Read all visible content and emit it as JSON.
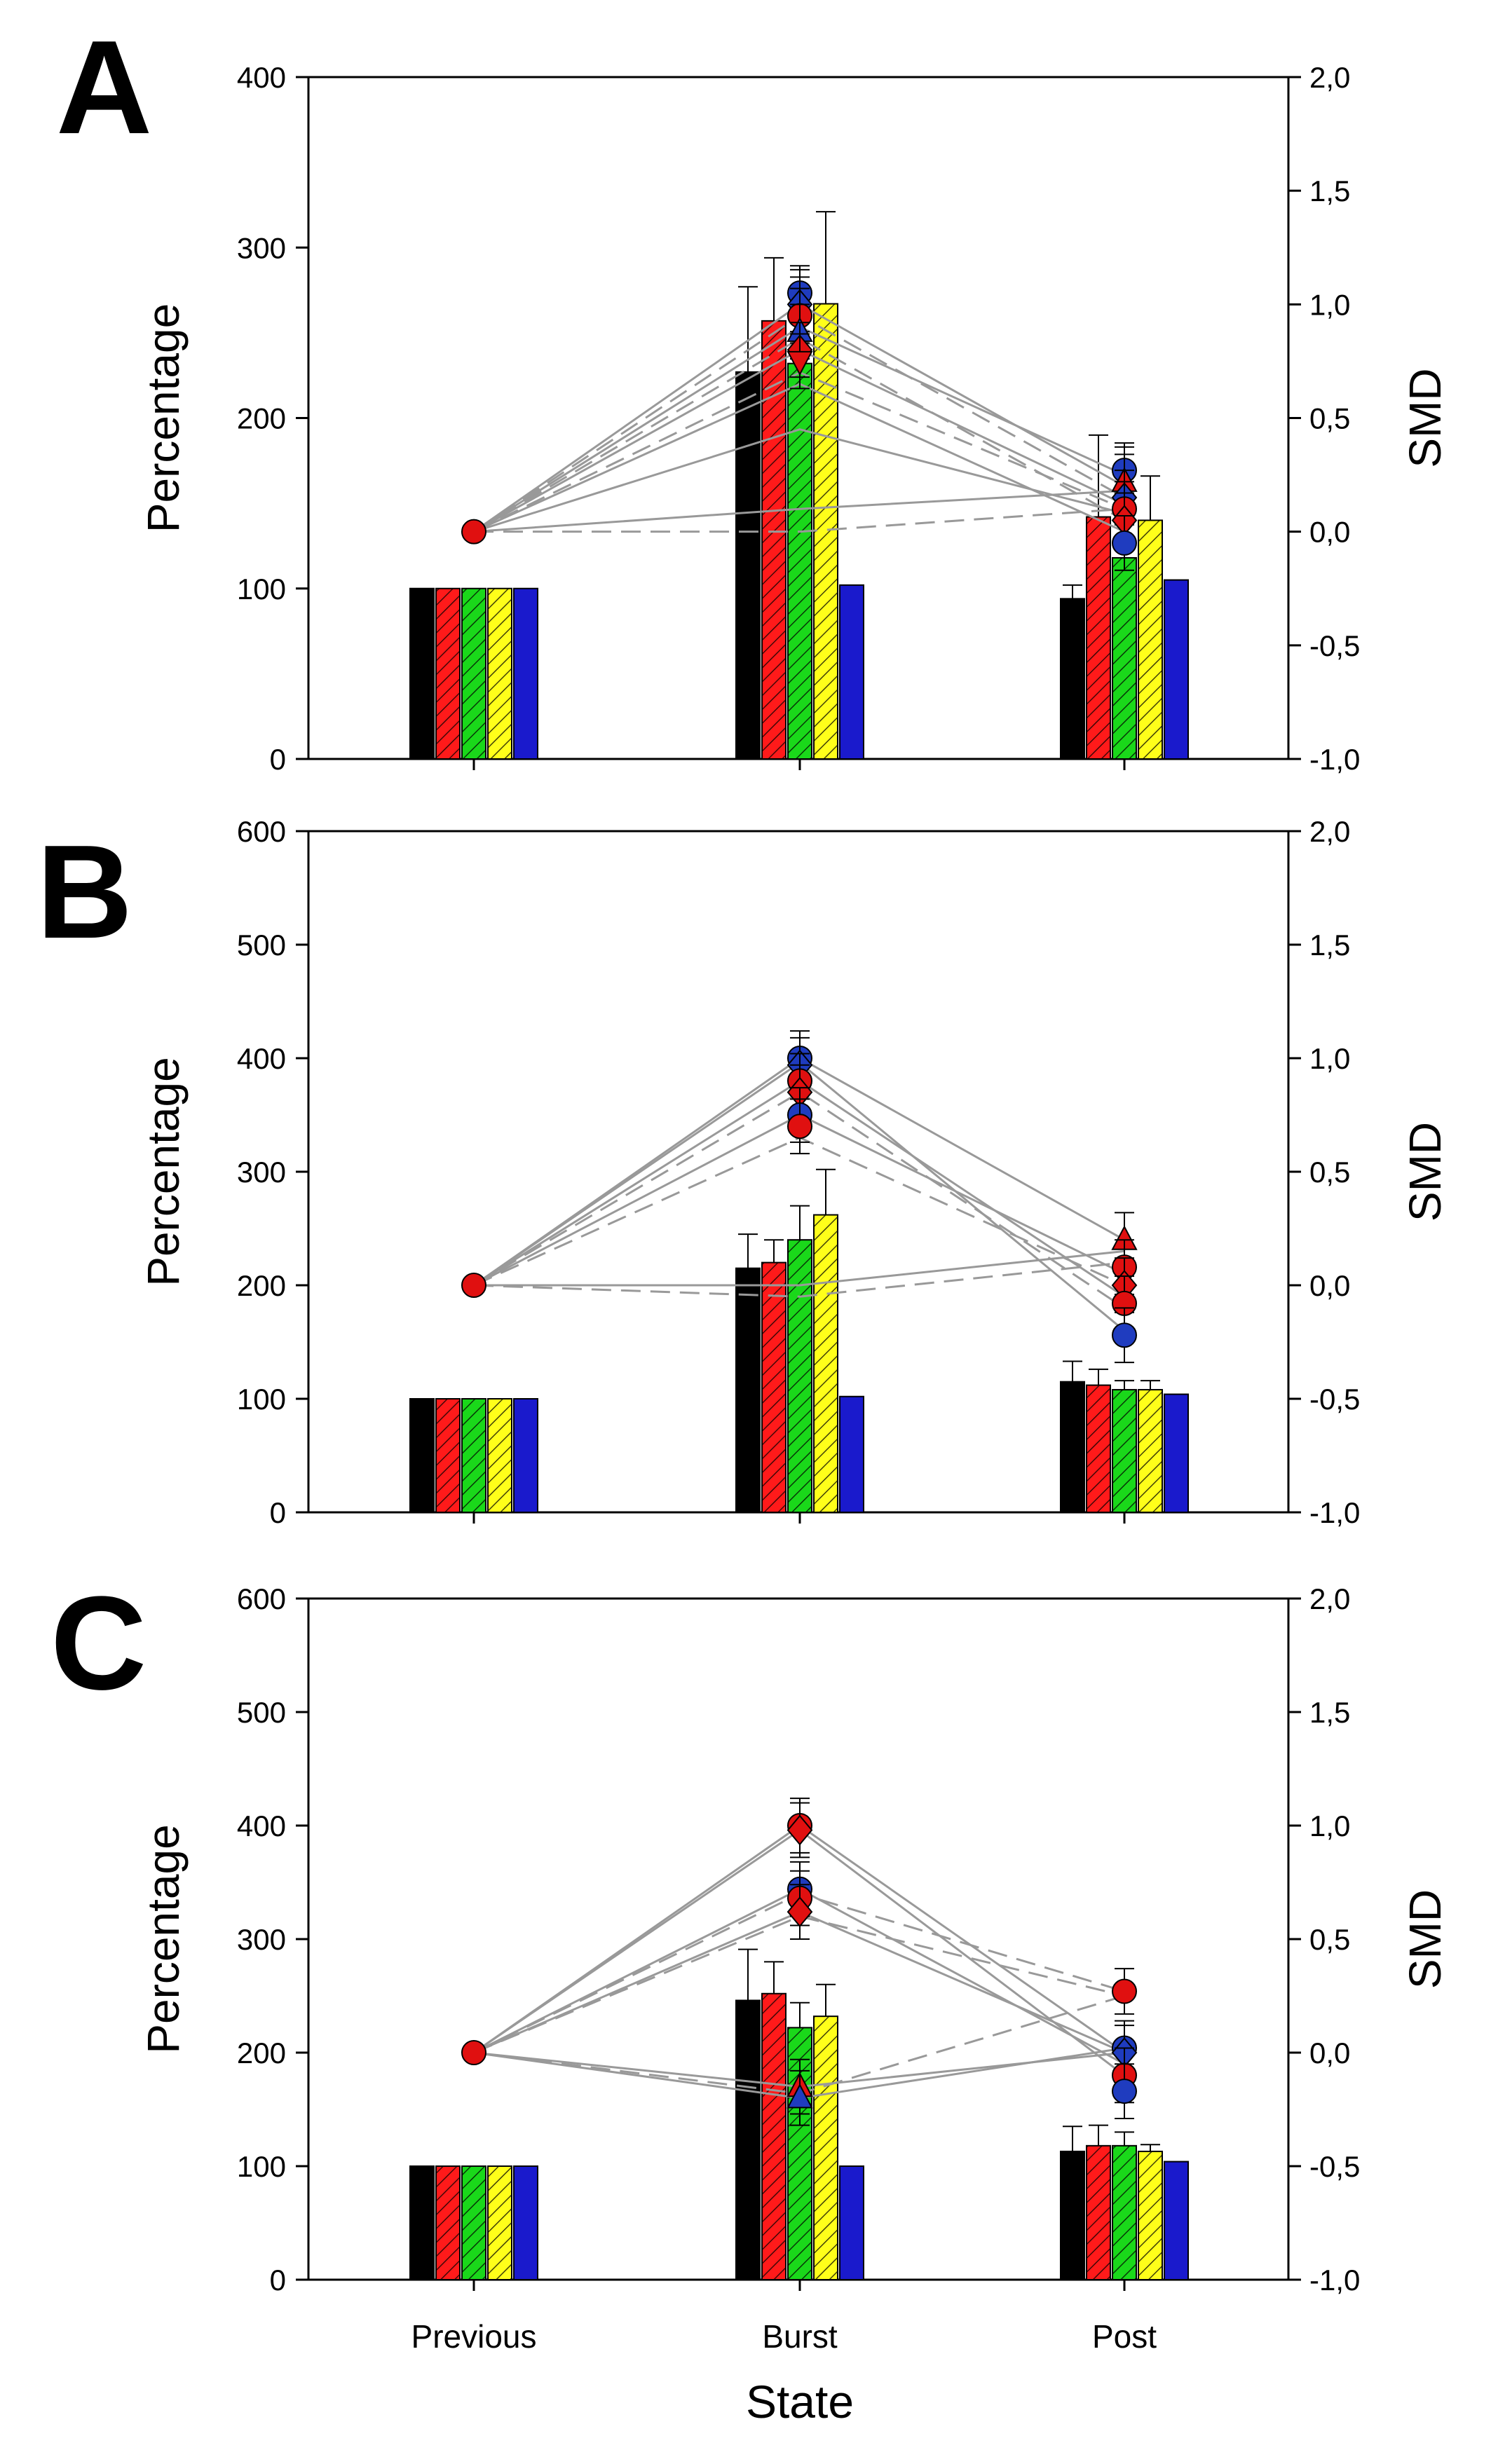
{
  "figure": {
    "xlabel": "State",
    "categories": [
      "Previous",
      "Burst",
      "Post"
    ]
  },
  "colors": {
    "black": "#000000",
    "red": "#ff1a1a",
    "green": "#1ad81a",
    "yellow": "#ffff1a",
    "blue": "#1a1acc",
    "line": "#999999",
    "marker_red": "#e01010",
    "marker_blue": "#1f3cbf"
  },
  "chart_data": [
    {
      "type": "bar",
      "panel": "A",
      "ylabel": "Percentage",
      "y2label": "SMD",
      "ylim": [
        0,
        400
      ],
      "yticks": [
        "0",
        "100",
        "200",
        "300",
        "400"
      ],
      "y2lim": [
        -1.0,
        2.0
      ],
      "y2ticks": [
        "-1,0",
        "-0,5",
        "0,0",
        "0,5",
        "1,0",
        "1,5",
        "2,0"
      ],
      "categories": [
        "Previous",
        "Burst",
        "Post"
      ],
      "series": [
        {
          "color": "black",
          "hatch": false,
          "values": [
            100,
            227,
            94
          ],
          "errors": [
            0,
            50,
            8
          ]
        },
        {
          "color": "red",
          "hatch": true,
          "values": [
            100,
            257,
            142
          ],
          "errors": [
            0,
            37,
            48
          ]
        },
        {
          "color": "green",
          "hatch": true,
          "values": [
            100,
            232,
            118
          ],
          "errors": [
            0,
            55,
            65
          ]
        },
        {
          "color": "yellow",
          "hatch": true,
          "values": [
            100,
            267,
            140
          ],
          "errors": [
            0,
            54,
            26
          ]
        },
        {
          "color": "blue",
          "hatch": false,
          "values": [
            100,
            102,
            105
          ],
          "errors": [
            0,
            0,
            0
          ]
        }
      ],
      "smd_lines": [
        {
          "style": "solid",
          "values": [
            0.0,
            1.0,
            0.2
          ]
        },
        {
          "style": "solid",
          "values": [
            0.0,
            0.9,
            0.25
          ]
        },
        {
          "style": "solid",
          "values": [
            0.0,
            0.8,
            0.12
          ]
        },
        {
          "style": "solid",
          "values": [
            0.0,
            0.65,
            0.0
          ]
        },
        {
          "style": "solid",
          "values": [
            0.0,
            0.45,
            0.08
          ]
        },
        {
          "style": "solid",
          "values": [
            0.0,
            0.1,
            0.18
          ]
        },
        {
          "style": "dashed",
          "values": [
            0.0,
            0.95,
            0.15
          ]
        },
        {
          "style": "dashed",
          "values": [
            0.0,
            0.85,
            0.05
          ]
        },
        {
          "style": "dashed",
          "values": [
            0.0,
            0.7,
            0.1
          ]
        },
        {
          "style": "dashed",
          "values": [
            0.0,
            0.0,
            0.1
          ]
        }
      ],
      "smd_markers": [
        {
          "cat": 0,
          "value": 0.0,
          "color": "red",
          "shape": "circle",
          "err": 0
        },
        {
          "cat": 1,
          "value": 1.05,
          "color": "blue",
          "shape": "circle",
          "err": 0.12
        },
        {
          "cat": 1,
          "value": 1.0,
          "color": "blue",
          "shape": "diamond",
          "err": 0.12
        },
        {
          "cat": 1,
          "value": 0.95,
          "color": "red",
          "shape": "circle",
          "err": 0.12
        },
        {
          "cat": 1,
          "value": 0.88,
          "color": "blue",
          "shape": "triangle",
          "err": 0.12
        },
        {
          "cat": 1,
          "value": 0.8,
          "color": "red",
          "shape": "diamond",
          "err": 0.12
        },
        {
          "cat": 1,
          "value": 0.75,
          "color": "red",
          "shape": "triangle-down",
          "err": 0.12
        },
        {
          "cat": 2,
          "value": 0.27,
          "color": "blue",
          "shape": "circle",
          "err": 0.12
        },
        {
          "cat": 2,
          "value": 0.22,
          "color": "red",
          "shape": "triangle",
          "err": 0.12
        },
        {
          "cat": 2,
          "value": 0.15,
          "color": "blue",
          "shape": "diamond",
          "err": 0.12
        },
        {
          "cat": 2,
          "value": 0.1,
          "color": "red",
          "shape": "circle",
          "err": 0.12
        },
        {
          "cat": 2,
          "value": 0.05,
          "color": "red",
          "shape": "diamond",
          "err": 0.12
        },
        {
          "cat": 2,
          "value": -0.05,
          "color": "blue",
          "shape": "circle",
          "err": 0.12
        }
      ]
    },
    {
      "type": "bar",
      "panel": "B",
      "ylabel": "Percentage",
      "y2label": "SMD",
      "ylim": [
        0,
        600
      ],
      "yticks": [
        "0",
        "100",
        "200",
        "300",
        "400",
        "500",
        "600"
      ],
      "y2lim": [
        -1.0,
        2.0
      ],
      "y2ticks": [
        "-1,0",
        "-0,5",
        "0,0",
        "0,5",
        "1,0",
        "1,5",
        "2,0"
      ],
      "categories": [
        "Previous",
        "Burst",
        "Post"
      ],
      "series": [
        {
          "color": "black",
          "hatch": false,
          "values": [
            100,
            215,
            115
          ],
          "errors": [
            0,
            30,
            18
          ]
        },
        {
          "color": "red",
          "hatch": true,
          "values": [
            100,
            220,
            112
          ],
          "errors": [
            0,
            20,
            14
          ]
        },
        {
          "color": "green",
          "hatch": true,
          "values": [
            100,
            240,
            108
          ],
          "errors": [
            0,
            30,
            8
          ]
        },
        {
          "color": "yellow",
          "hatch": true,
          "values": [
            100,
            262,
            108
          ],
          "errors": [
            0,
            40,
            8
          ]
        },
        {
          "color": "blue",
          "hatch": false,
          "values": [
            100,
            102,
            104
          ],
          "errors": [
            0,
            0,
            0
          ]
        }
      ],
      "smd_lines": [
        {
          "style": "solid",
          "values": [
            0.0,
            1.0,
            0.2
          ]
        },
        {
          "style": "solid",
          "values": [
            0.0,
            0.98,
            -0.2
          ]
        },
        {
          "style": "solid",
          "values": [
            0.0,
            0.9,
            -0.05
          ]
        },
        {
          "style": "solid",
          "values": [
            0.0,
            0.75,
            0.05
          ]
        },
        {
          "style": "solid",
          "values": [
            0.0,
            0.0,
            0.15
          ]
        },
        {
          "style": "dashed",
          "values": [
            0.0,
            0.85,
            -0.1
          ]
        },
        {
          "style": "dashed",
          "values": [
            0.0,
            0.65,
            0.0
          ]
        },
        {
          "style": "dashed",
          "values": [
            0.0,
            -0.05,
            0.1
          ]
        }
      ],
      "smd_markers": [
        {
          "cat": 0,
          "value": 0.0,
          "color": "red",
          "shape": "circle",
          "err": 0
        },
        {
          "cat": 1,
          "value": 1.0,
          "color": "blue",
          "shape": "circle",
          "err": 0.12
        },
        {
          "cat": 1,
          "value": 0.97,
          "color": "blue",
          "shape": "diamond",
          "err": 0.12
        },
        {
          "cat": 1,
          "value": 0.9,
          "color": "red",
          "shape": "circle",
          "err": 0.12
        },
        {
          "cat": 1,
          "value": 0.85,
          "color": "red",
          "shape": "diamond",
          "err": 0.12
        },
        {
          "cat": 1,
          "value": 0.75,
          "color": "blue",
          "shape": "circle",
          "err": 0.12
        },
        {
          "cat": 1,
          "value": 0.7,
          "color": "red",
          "shape": "circle",
          "err": 0.12
        },
        {
          "cat": 2,
          "value": 0.2,
          "color": "red",
          "shape": "triangle",
          "err": 0.12
        },
        {
          "cat": 2,
          "value": 0.08,
          "color": "red",
          "shape": "circle",
          "err": 0.12
        },
        {
          "cat": 2,
          "value": 0.0,
          "color": "red",
          "shape": "diamond",
          "err": 0.12
        },
        {
          "cat": 2,
          "value": -0.08,
          "color": "red",
          "shape": "circle",
          "err": 0.12
        },
        {
          "cat": 2,
          "value": -0.22,
          "color": "blue",
          "shape": "circle",
          "err": 0.12
        }
      ]
    },
    {
      "type": "bar",
      "panel": "C",
      "ylabel": "Percentage",
      "y2label": "SMD",
      "ylim": [
        0,
        600
      ],
      "yticks": [
        "0",
        "100",
        "200",
        "300",
        "400",
        "500",
        "600"
      ],
      "y2lim": [
        -1.0,
        2.0
      ],
      "y2ticks": [
        "-1,0",
        "-0,5",
        "0,0",
        "0,5",
        "1,0",
        "1,5",
        "2,0"
      ],
      "categories": [
        "Previous",
        "Burst",
        "Post"
      ],
      "series": [
        {
          "color": "black",
          "hatch": false,
          "values": [
            100,
            246,
            113
          ],
          "errors": [
            0,
            45,
            22
          ]
        },
        {
          "color": "red",
          "hatch": true,
          "values": [
            100,
            252,
            118
          ],
          "errors": [
            0,
            28,
            18
          ]
        },
        {
          "color": "green",
          "hatch": true,
          "values": [
            100,
            222,
            118
          ],
          "errors": [
            0,
            22,
            12
          ]
        },
        {
          "color": "yellow",
          "hatch": true,
          "values": [
            100,
            232,
            113
          ],
          "errors": [
            0,
            28,
            6
          ]
        },
        {
          "color": "blue",
          "hatch": false,
          "values": [
            100,
            100,
            104
          ],
          "errors": [
            0,
            0,
            0
          ]
        }
      ],
      "smd_lines": [
        {
          "style": "solid",
          "values": [
            0.0,
            1.0,
            0.0
          ]
        },
        {
          "style": "solid",
          "values": [
            0.0,
            0.98,
            -0.1
          ]
        },
        {
          "style": "solid",
          "values": [
            0.0,
            0.72,
            -0.05
          ]
        },
        {
          "style": "solid",
          "values": [
            0.0,
            0.62,
            0.0
          ]
        },
        {
          "style": "solid",
          "values": [
            0.0,
            -0.2,
            0.02
          ]
        },
        {
          "style": "solid",
          "values": [
            0.0,
            -0.15,
            0.0
          ]
        },
        {
          "style": "dashed",
          "values": [
            0.0,
            0.7,
            0.27
          ]
        },
        {
          "style": "dashed",
          "values": [
            0.0,
            0.6,
            0.25
          ]
        },
        {
          "style": "dashed",
          "values": [
            0.0,
            -0.18,
            0.25
          ]
        }
      ],
      "smd_markers": [
        {
          "cat": 0,
          "value": 0.0,
          "color": "red",
          "shape": "circle",
          "err": 0
        },
        {
          "cat": 1,
          "value": 1.0,
          "color": "red",
          "shape": "circle",
          "err": 0.12
        },
        {
          "cat": 1,
          "value": 0.98,
          "color": "red",
          "shape": "diamond",
          "err": 0.12
        },
        {
          "cat": 1,
          "value": 0.72,
          "color": "blue",
          "shape": "circle",
          "err": 0.12
        },
        {
          "cat": 1,
          "value": 0.68,
          "color": "red",
          "shape": "circle",
          "err": 0.12
        },
        {
          "cat": 1,
          "value": 0.62,
          "color": "red",
          "shape": "diamond",
          "err": 0.12
        },
        {
          "cat": 1,
          "value": -0.15,
          "color": "red",
          "shape": "triangle",
          "err": 0.12
        },
        {
          "cat": 1,
          "value": -0.2,
          "color": "blue",
          "shape": "triangle",
          "err": 0.12
        },
        {
          "cat": 2,
          "value": 0.27,
          "color": "red",
          "shape": "circle",
          "err": 0.1
        },
        {
          "cat": 2,
          "value": 0.02,
          "color": "blue",
          "shape": "circle",
          "err": 0.12
        },
        {
          "cat": 2,
          "value": 0.0,
          "color": "blue",
          "shape": "diamond",
          "err": 0.12
        },
        {
          "cat": 2,
          "value": -0.1,
          "color": "red",
          "shape": "circle",
          "err": 0.12
        },
        {
          "cat": 2,
          "value": -0.17,
          "color": "blue",
          "shape": "circle",
          "err": 0.12
        }
      ]
    }
  ]
}
